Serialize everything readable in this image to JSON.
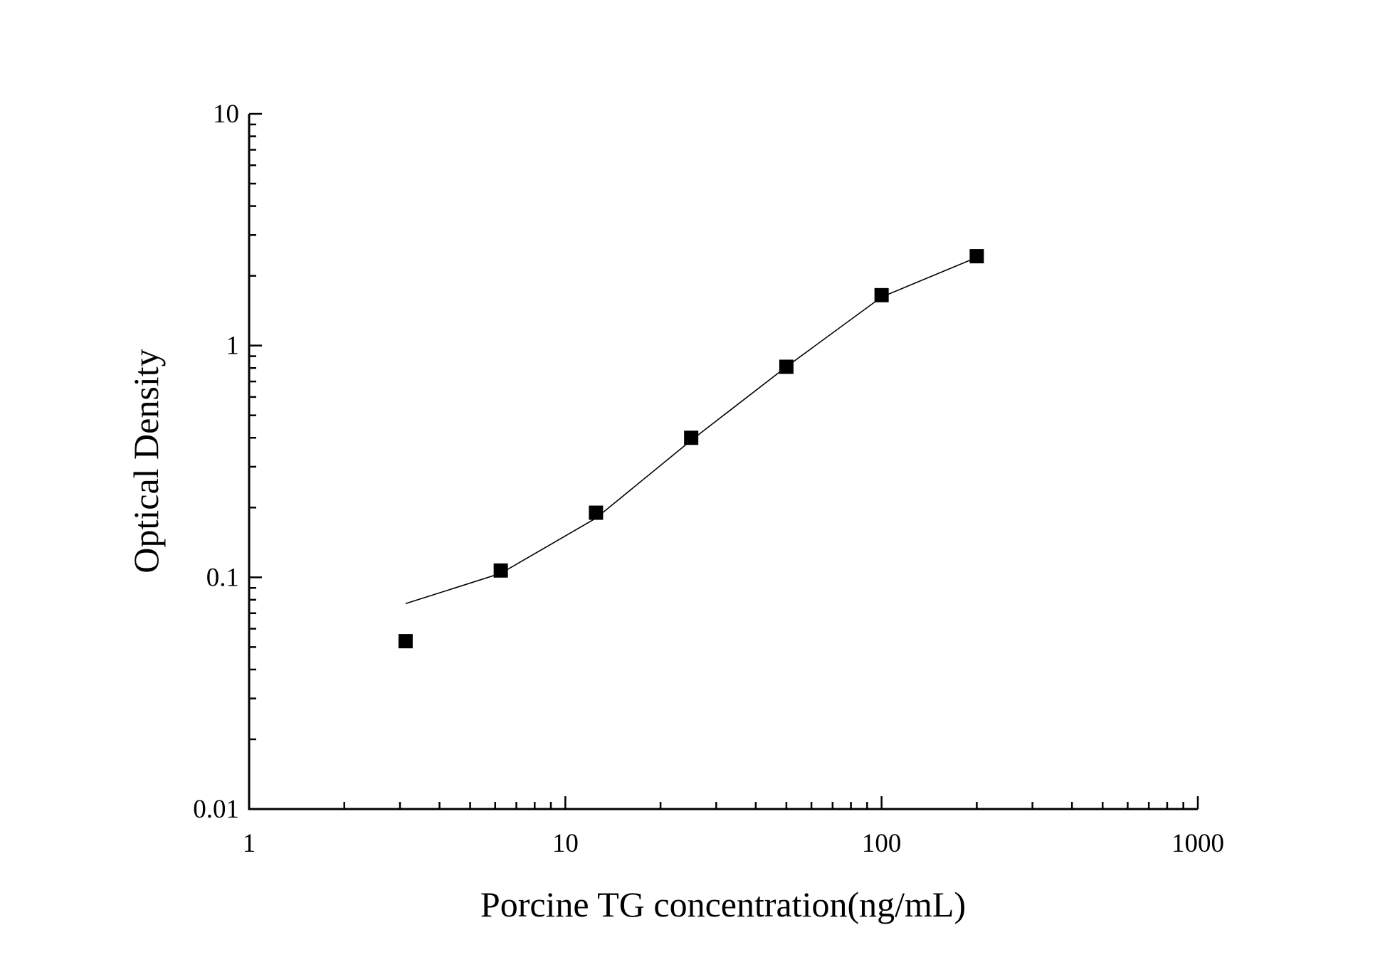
{
  "chart_data": {
    "type": "scatter",
    "title": "",
    "xlabel": "Porcine TG concentration(ng/mL)",
    "ylabel": "Optical Density",
    "xscale": "log",
    "yscale": "log",
    "xlim": [
      1,
      1000
    ],
    "ylim": [
      0.01,
      10
    ],
    "xticks": [
      1,
      10,
      100,
      1000
    ],
    "xtick_labels": [
      "1",
      "10",
      "100",
      "1000"
    ],
    "yticks": [
      0.01,
      0.1,
      1,
      10
    ],
    "ytick_labels": [
      "0.01",
      "0.1",
      "1",
      "10"
    ],
    "grid": false,
    "legend": "none",
    "marker": "square",
    "color": "#000000",
    "points": {
      "x": [
        3.125,
        6.25,
        12.5,
        25,
        50,
        100,
        200
      ],
      "y": [
        0.053,
        0.107,
        0.19,
        0.4,
        0.81,
        1.65,
        2.43
      ]
    },
    "fit_curve": {
      "x": [
        3.125,
        6.25,
        12.5,
        25,
        50,
        100,
        200
      ],
      "y": [
        0.077,
        0.104,
        0.18,
        0.39,
        0.81,
        1.62,
        2.4
      ]
    }
  }
}
